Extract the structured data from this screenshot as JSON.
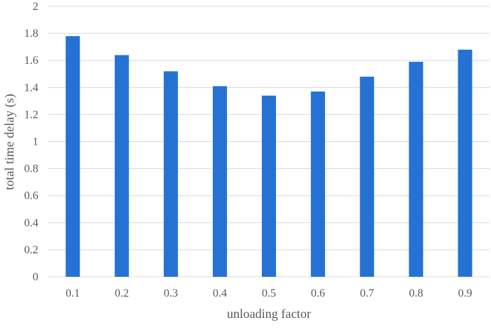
{
  "chart_data": {
    "type": "bar",
    "title": "",
    "xlabel": "unloading factor",
    "ylabel": "total time delay (s)",
    "categories": [
      "0.1",
      "0.2",
      "0.3",
      "0.4",
      "0.5",
      "0.6",
      "0.7",
      "0.8",
      "0.9"
    ],
    "values": [
      1.78,
      1.64,
      1.52,
      1.41,
      1.34,
      1.37,
      1.48,
      1.59,
      1.68
    ],
    "ylim": [
      0,
      2
    ],
    "yticks": [
      0,
      0.2,
      0.4,
      0.6,
      0.8,
      1,
      1.2,
      1.4,
      1.6,
      1.8,
      2
    ],
    "ytick_labels": [
      "0",
      "0.2",
      "0.4",
      "0.6",
      "0.8",
      "1",
      "1.2",
      "1.4",
      "1.6",
      "1.8",
      "2"
    ],
    "grid": true,
    "legend": "none",
    "colors": {
      "bar": "#2672D4",
      "grid": "#D9D9D9",
      "text": "#595959"
    }
  }
}
